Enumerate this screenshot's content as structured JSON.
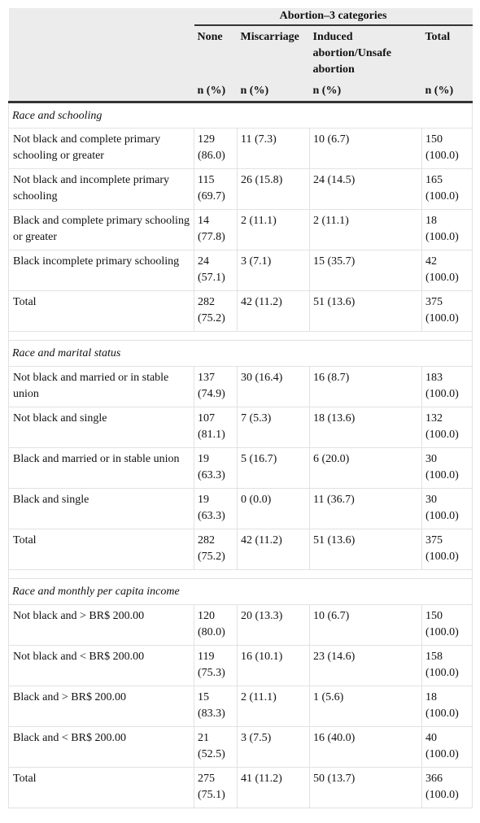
{
  "header": {
    "group": "Abortion–3 categories",
    "columns": [
      "None",
      "Miscarriage",
      "Induced abortion/Unsafe abortion",
      "Total"
    ],
    "units": [
      "n (%)",
      "n (%)",
      "n (%)",
      "n (%)"
    ]
  },
  "sections": [
    {
      "title": "Race and schooling",
      "rows": [
        [
          "Not black and complete primary schooling or greater",
          "129 (86.0)",
          "11 (7.3)",
          "10 (6.7)",
          "150 (100.0)"
        ],
        [
          "Not black and incomplete primary schooling",
          "115 (69.7)",
          "26 (15.8)",
          "24 (14.5)",
          "165 (100.0)"
        ],
        [
          "Black and complete primary schooling or greater",
          "14 (77.8)",
          "2 (11.1)",
          "2 (11.1)",
          "18 (100.0)"
        ],
        [
          "Black incomplete primary schooling",
          "24 (57.1)",
          "3 (7.1)",
          "15 (35.7)",
          "42 (100.0)"
        ],
        [
          "Total",
          "282 (75.2)",
          "42 (11.2)",
          "51 (13.6)",
          "375 (100.0)"
        ]
      ]
    },
    {
      "title": "Race and marital status",
      "rows": [
        [
          "Not black and married or in stable union",
          "137 (74.9)",
          "30 (16.4)",
          "16 (8.7)",
          "183 (100.0)"
        ],
        [
          "Not black and single",
          "107 (81.1)",
          "7 (5.3)",
          "18 (13.6)",
          "132 (100.0)"
        ],
        [
          "Black and married or in stable union",
          "19 (63.3)",
          "5 (16.7)",
          "6 (20.0)",
          "30 (100.0)"
        ],
        [
          "Black and single",
          "19 (63.3)",
          "0 (0.0)",
          "11 (36.7)",
          "30 (100.0)"
        ],
        [
          "Total",
          "282 (75.2)",
          "42 (11.2)",
          "51 (13.6)",
          "375 (100.0)"
        ]
      ]
    },
    {
      "title": "Race and monthly per capita income",
      "rows": [
        [
          "Not black and > BR$ 200.00",
          "120 (80.0)",
          "20 (13.3)",
          "10 (6.7)",
          "150 (100.0)"
        ],
        [
          "Not black and < BR$ 200.00",
          "119 (75.3)",
          "16 (10.1)",
          "23 (14.6)",
          "158 (100.0)"
        ],
        [
          "Black and > BR$ 200.00",
          "15 (83.3)",
          "2 (11.1)",
          "1 (5.6)",
          "18 (100.0)"
        ],
        [
          "Black and < BR$ 200.00",
          "21 (52.5)",
          "3 (7.5)",
          "16 (40.0)",
          "40 (100.0)"
        ],
        [
          "Total",
          "275 (75.1)",
          "41 (11.2)",
          "50 (13.7)",
          "366 (100.0)"
        ]
      ]
    }
  ]
}
